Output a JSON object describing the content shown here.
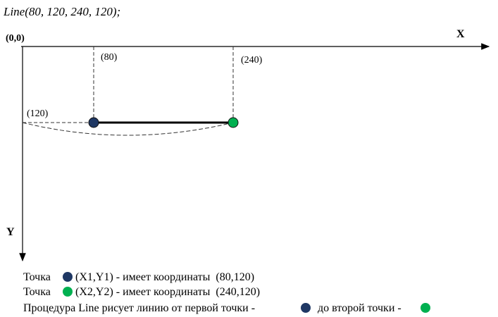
{
  "code": "Line(80, 120, 240, 120);",
  "origin": "(0,0)",
  "axes": {
    "x": "X",
    "y": "Y"
  },
  "labels": {
    "x1": "(80)",
    "x2": "(240)",
    "y": "(120)"
  },
  "notes": [
    {
      "before": "Точка",
      "after": "(X1,Y1) - имеет координаты  (80,120)"
    },
    {
      "before": "Точка",
      "after": "(X2,Y2) - имеет координаты  (240,120)"
    },
    {
      "before": "Процедура Line рисует линию от первой точки -",
      "middle": "до второй точки -"
    }
  ]
}
